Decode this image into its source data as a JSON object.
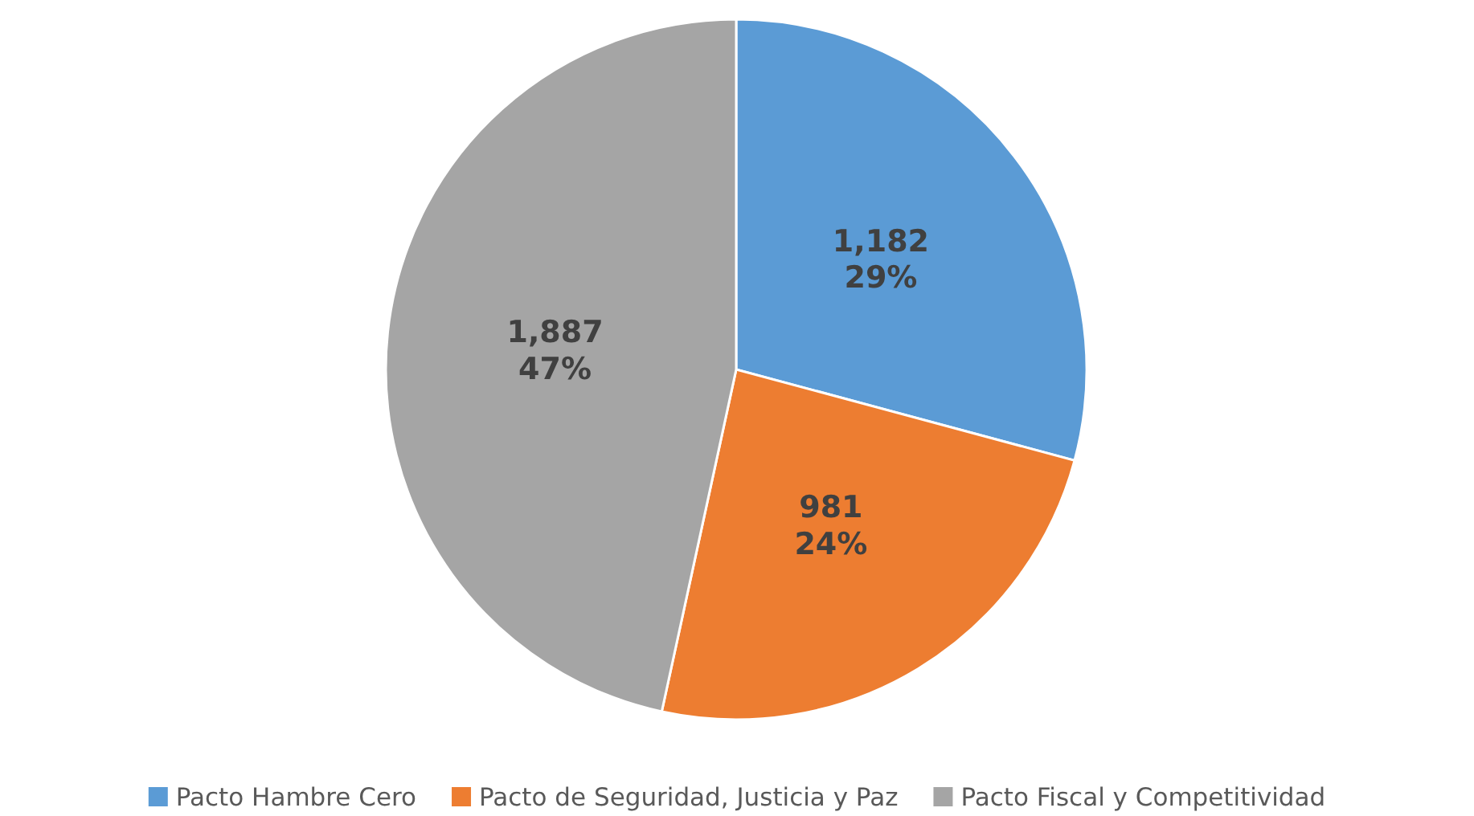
{
  "chart_data": {
    "type": "pie",
    "categories": [
      "Pacto Hambre Cero",
      "Pacto de Seguridad, Justicia y Paz",
      "Pacto Fiscal y Competitividad"
    ],
    "values": [
      1182,
      981,
      1887
    ],
    "colors": [
      "#5b9bd5",
      "#ed7d31",
      "#a5a5a5"
    ],
    "value_labels": [
      "1,182\n29%",
      "981\n24%",
      "1,887\n47%"
    ],
    "legend": "bottom"
  }
}
